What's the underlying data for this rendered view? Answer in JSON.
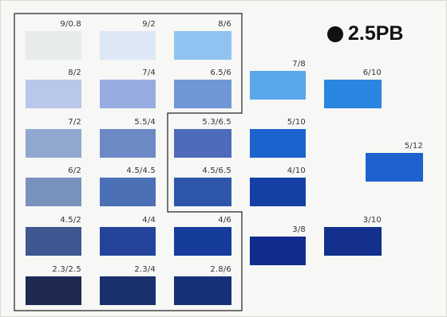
{
  "title": {
    "hue": "2.5PB"
  },
  "chips": [
    {
      "value": "9/0.8",
      "color": "#e7eceb"
    },
    {
      "value": "9/2",
      "color": "#dce8f5"
    },
    {
      "value": "8/6",
      "color": "#91c3f0"
    },
    {
      "value": "8/2",
      "color": "#b9c7ea"
    },
    {
      "value": "7/4",
      "color": "#98ace2"
    },
    {
      "value": "6.5/6",
      "color": "#6f97d8"
    },
    {
      "value": "7/8",
      "color": "#5aa7ec"
    },
    {
      "value": "6/10",
      "color": "#2b86e2"
    },
    {
      "value": "7/2",
      "color": "#90a8cf"
    },
    {
      "value": "5.5/4",
      "color": "#6d89c5"
    },
    {
      "value": "5.3/6.5",
      "color": "#4e6bbb"
    },
    {
      "value": "5/10",
      "color": "#1c63cd"
    },
    {
      "value": "5/12",
      "color": "#1e62d0"
    },
    {
      "value": "6/2",
      "color": "#7892bd"
    },
    {
      "value": "4.5/4.5",
      "color": "#4c70b6"
    },
    {
      "value": "4.5/6.5",
      "color": "#2e57aa"
    },
    {
      "value": "4/10",
      "color": "#1440a6"
    },
    {
      "value": "4.5/2",
      "color": "#3e5891"
    },
    {
      "value": "4/4",
      "color": "#23449a"
    },
    {
      "value": "4/6",
      "color": "#153c9b"
    },
    {
      "value": "3/8",
      "color": "#102c8c"
    },
    {
      "value": "3/10",
      "color": "#12308c"
    },
    {
      "value": "2.3/2.5",
      "color": "#1d2951"
    },
    {
      "value": "2.3/4",
      "color": "#192f6e"
    },
    {
      "value": "2.8/6",
      "color": "#17307a"
    }
  ]
}
